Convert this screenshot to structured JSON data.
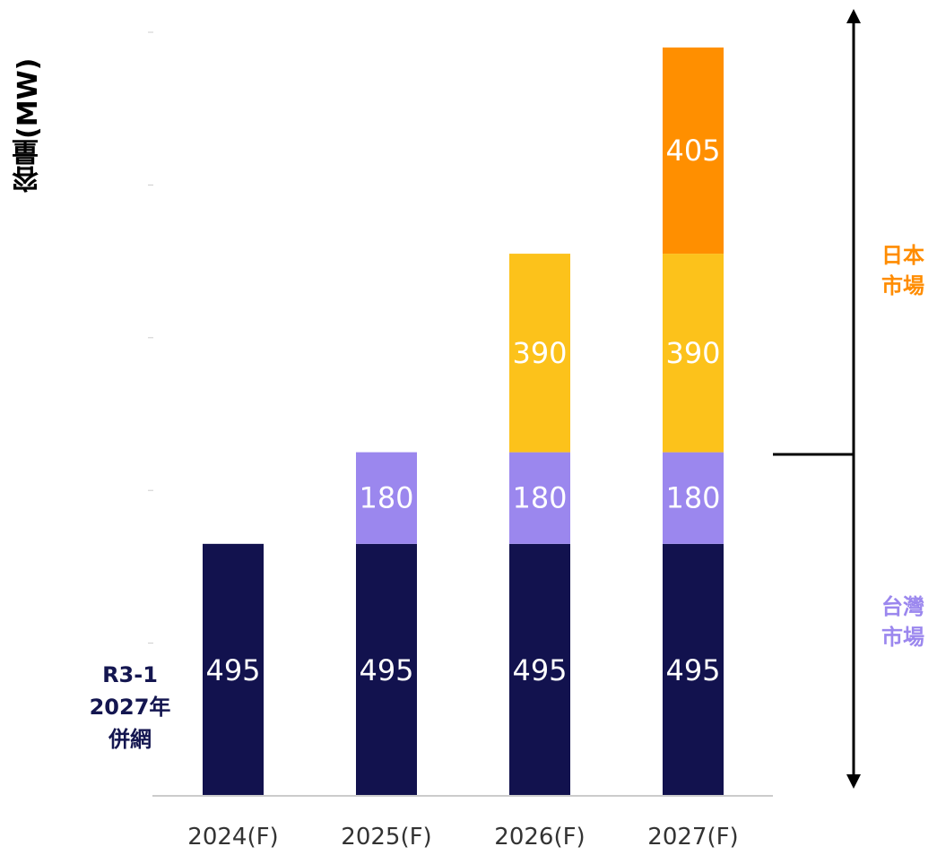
{
  "chart_data": {
    "type": "bar",
    "stacked": true,
    "ylabel": "容量(MW)",
    "categories": [
      "2024(F)",
      "2025(F)",
      "2026(F)",
      "2027(F)"
    ],
    "series": [
      {
        "values": [
          495,
          495,
          495,
          495
        ],
        "color": "#12124e"
      },
      {
        "values": [
          0,
          180,
          180,
          180
        ],
        "color": "#9b87ee"
      },
      {
        "values": [
          0,
          0,
          390,
          390
        ],
        "color": "#fcc21b"
      },
      {
        "values": [
          0,
          0,
          0,
          405
        ],
        "color": "#ff8f00"
      }
    ],
    "ylim": [
      0,
      1500
    ],
    "grid": false,
    "legend": "none",
    "annotations": {
      "note_lines": [
        "R3-1",
        "2027年",
        "併網"
      ],
      "japan_market": [
        "日本",
        "市場"
      ],
      "taiwan_market": [
        "台灣",
        "市場"
      ]
    }
  },
  "colors": {
    "note": "#141650",
    "japan_market": "#ff8c00",
    "taiwan_market": "#9b87ee",
    "axis": "#cccccc",
    "label_text": "#ffffff",
    "tick_text": "#333333"
  }
}
